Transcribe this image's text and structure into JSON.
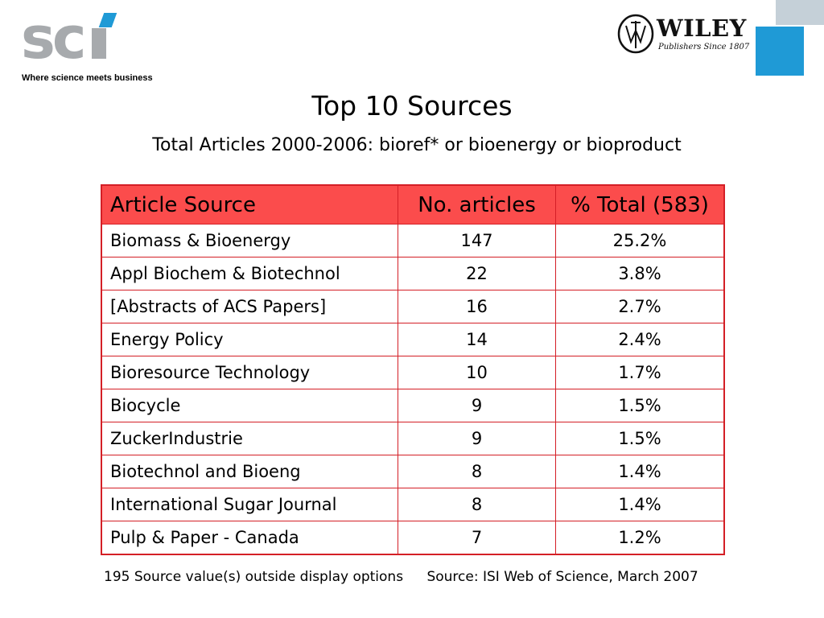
{
  "logos": {
    "sci": {
      "wordmark": "sci",
      "tagline": "Where science meets business",
      "color": "#a7aaad",
      "accent": "#1f9ad6"
    },
    "wiley": {
      "wordmark": "WILEY",
      "tagline": "Publishers Since 1807"
    }
  },
  "colors": {
    "header_fill": "#fb4c4c",
    "border": "#d41f26",
    "corner_blue": "#1f9ad6",
    "corner_gray": "#c5d0d8"
  },
  "title": "Top 10 Sources",
  "subtitle": "Total Articles 2000-2006: bioref* or bioenergy or bioproduct",
  "table": {
    "headers": [
      "Article Source",
      "No. articles",
      "% Total (583)"
    ],
    "rows": [
      [
        "Biomass & Bioenergy",
        "147",
        "25.2%"
      ],
      [
        "Appl Biochem & Biotechnol",
        "22",
        "3.8%"
      ],
      [
        "[Abstracts of ACS Papers]",
        "16",
        "2.7%"
      ],
      [
        "Energy Policy",
        "14",
        "2.4%"
      ],
      [
        "Bioresource Technology",
        "10",
        "1.7%"
      ],
      [
        "Biocycle",
        "9",
        "1.5%"
      ],
      [
        "ZuckerIndustrie",
        "9",
        "1.5%"
      ],
      [
        "Biotechnol and Bioeng",
        "8",
        "1.4%"
      ],
      [
        "International Sugar Journal",
        "8",
        "1.4%"
      ],
      [
        "Pulp & Paper - Canada",
        "7",
        "1.2%"
      ]
    ]
  },
  "footer": {
    "note": "195 Source value(s) outside display options",
    "source": "Source: ISI Web of Science, March 2007"
  }
}
